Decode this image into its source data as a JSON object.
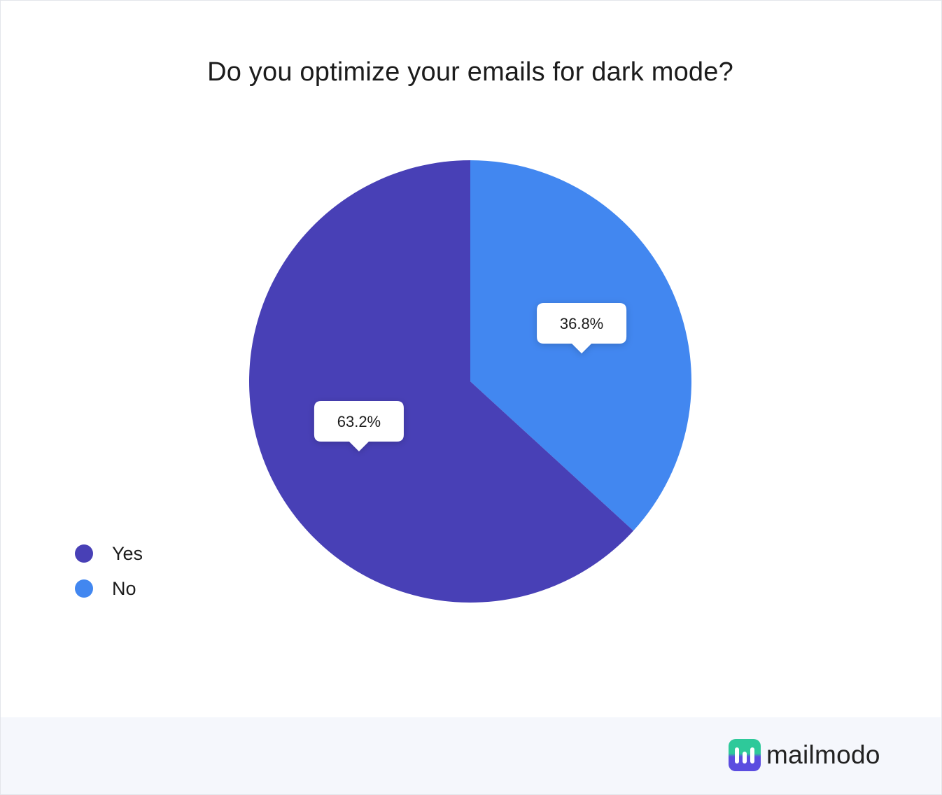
{
  "chart_data": {
    "type": "pie",
    "title": "Do you optimize your emails for dark mode?",
    "categories": [
      "Yes",
      "No"
    ],
    "values": [
      63.2,
      36.8
    ],
    "labels": [
      "63.2%",
      "36.8%"
    ],
    "colors": [
      "#4840b6",
      "#4287f0"
    ],
    "legend_position": "bottom-left"
  },
  "legend": [
    {
      "label": "Yes",
      "color": "#4840b6"
    },
    {
      "label": "No",
      "color": "#4287f0"
    }
  ],
  "brand": {
    "name": "mailmodo",
    "logo_colors": [
      "#2ec99a",
      "#5b4de0"
    ]
  }
}
